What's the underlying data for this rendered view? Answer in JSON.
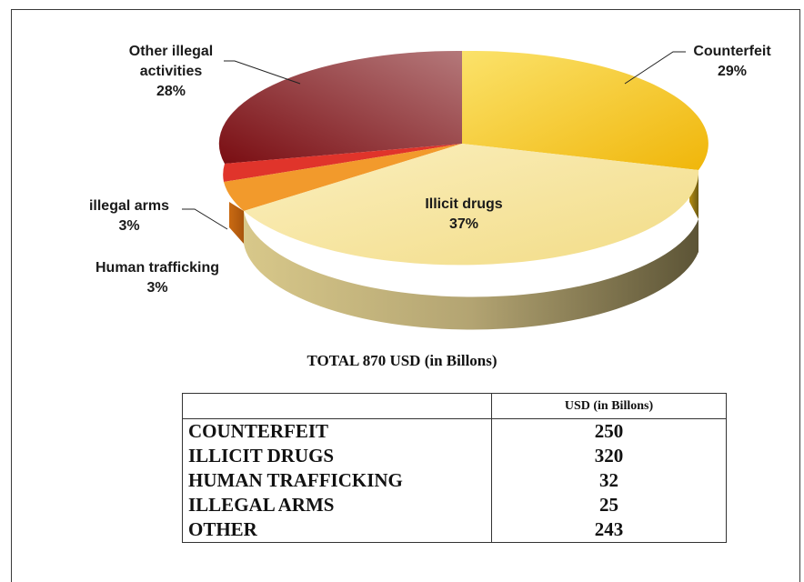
{
  "chart_data": [
    {
      "type": "pie",
      "title": "",
      "slices": [
        {
          "label": "Counterfeit",
          "pct_label": "29%",
          "value": 29,
          "color": "#f2c318"
        },
        {
          "label": "Illicit drugs",
          "pct_label": "37%",
          "value": 37,
          "color": "#f7e39b"
        },
        {
          "label": "Human trafficking",
          "pct_label": "3%",
          "value": 3,
          "color": "#f09a2a"
        },
        {
          "label": "illegal arms",
          "pct_label": "3%",
          "value": 3,
          "color": "#e23a2e"
        },
        {
          "label": "Other illegal activities",
          "pct_label": "28%",
          "value": 28,
          "color": "#8e1d1e"
        }
      ]
    },
    {
      "type": "table",
      "columns": [
        "",
        "USD (in Billons)"
      ],
      "rows": [
        [
          "COUNTERFEIT",
          "250"
        ],
        [
          "ILLICIT DRUGS",
          "320"
        ],
        [
          "HUMAN TRAFFICKING",
          "32"
        ],
        [
          "ILLEGAL ARMS",
          "25"
        ],
        [
          "OTHER",
          "243"
        ]
      ]
    }
  ],
  "labels": {
    "other_line1": "Other illegal",
    "other_line2": "activities",
    "other_pct": "28%",
    "counterfeit": "Counterfeit",
    "counterfeit_pct": "29%",
    "drugs": "Illicit drugs",
    "drugs_pct": "37%",
    "arms": "illegal arms",
    "arms_pct": "3%",
    "human": "Human trafficking",
    "human_pct": "3%"
  },
  "total_text": "TOTAL   870 USD (in Billons)",
  "table": {
    "header_col1": "",
    "header_col2": "USD (in Billons)",
    "rows": [
      {
        "name": "COUNTERFEIT",
        "value": "250"
      },
      {
        "name": "ILLICIT DRUGS",
        "value": "320"
      },
      {
        "name": "HUMAN TRAFFICKING",
        "value": "32"
      },
      {
        "name": "ILLEGAL ARMS",
        "value": "25"
      },
      {
        "name": "OTHER",
        "value": "243"
      }
    ]
  }
}
